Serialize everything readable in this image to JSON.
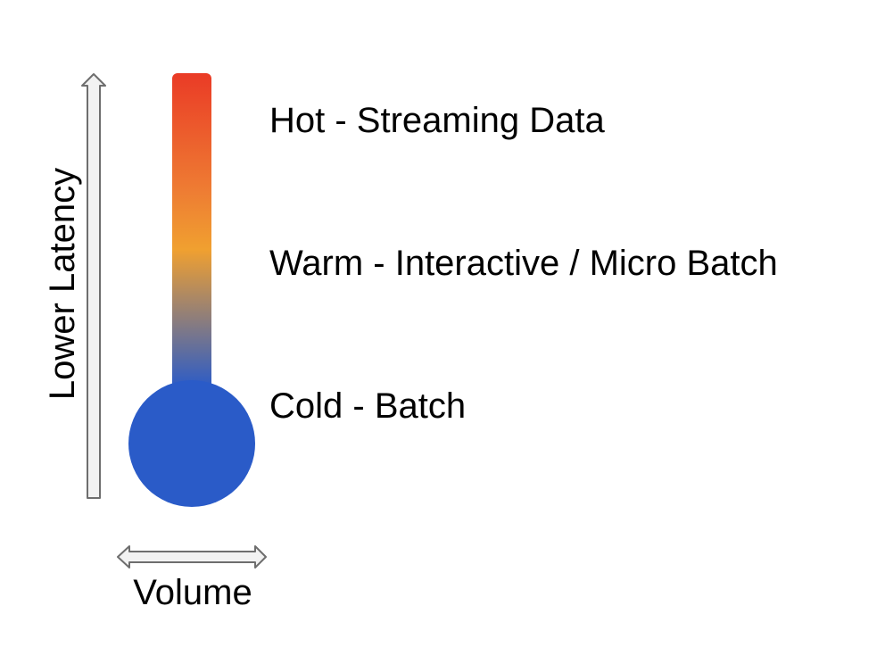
{
  "thermometer": {
    "colors": {
      "hot": "#ea3b26",
      "warm": "#f0a030",
      "cold": "#2a5bc8"
    },
    "levels": [
      {
        "label": "Hot - Streaming Data"
      },
      {
        "label": "Warm - Interactive / Micro Batch"
      },
      {
        "label": "Cold - Batch"
      }
    ]
  },
  "axes": {
    "vertical_label": "Lower Latency",
    "horizontal_label": "Volume"
  }
}
